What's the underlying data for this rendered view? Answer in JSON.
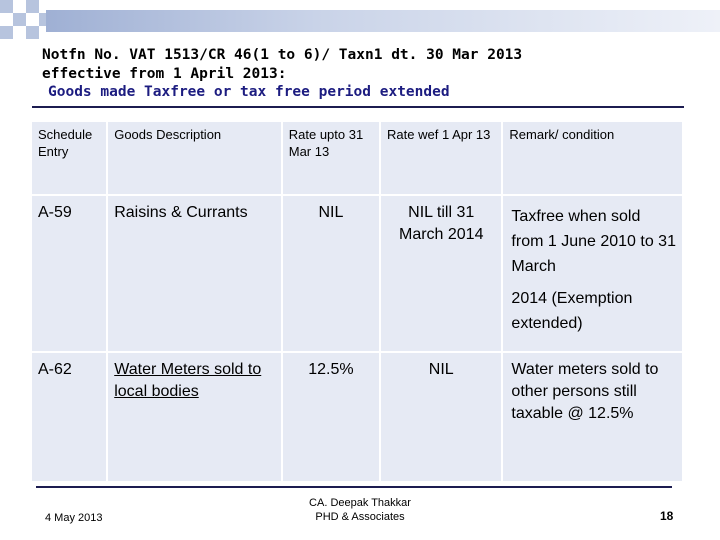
{
  "title": {
    "line1": "Notfn No. VAT 1513/CR 46(1 to 6)/ Taxn1 dt. 30 Mar 2013",
    "line2": "effective from 1 April 2013:",
    "line3": "Goods made Taxfree or tax free period extended"
  },
  "table": {
    "headers": [
      "Schedule Entry",
      "Goods Description",
      "Rate upto 31 Mar 13",
      "Rate wef 1 Apr 13",
      "Remark/ condition"
    ],
    "rows": [
      {
        "entry": "A-59",
        "description": "Raisins & Currants",
        "rate_before": "NIL",
        "rate_after": "NIL till 31 March 2014",
        "remark_1": "Taxfree when sold from 1 June 2010 to 31 March",
        "remark_2": "2014 (Exemption extended)"
      },
      {
        "entry": "A-62",
        "description": "Water Meters sold to local bodies",
        "rate_before": "12.5%",
        "rate_after": "NIL",
        "remark_1": "Water meters sold to other persons still taxable @ 12.5%"
      }
    ]
  },
  "footer": {
    "date": "4 May 2013",
    "author_line1": "CA. Deepak Thakkar",
    "author_line2": "PHD & Associates",
    "page": "18"
  }
}
